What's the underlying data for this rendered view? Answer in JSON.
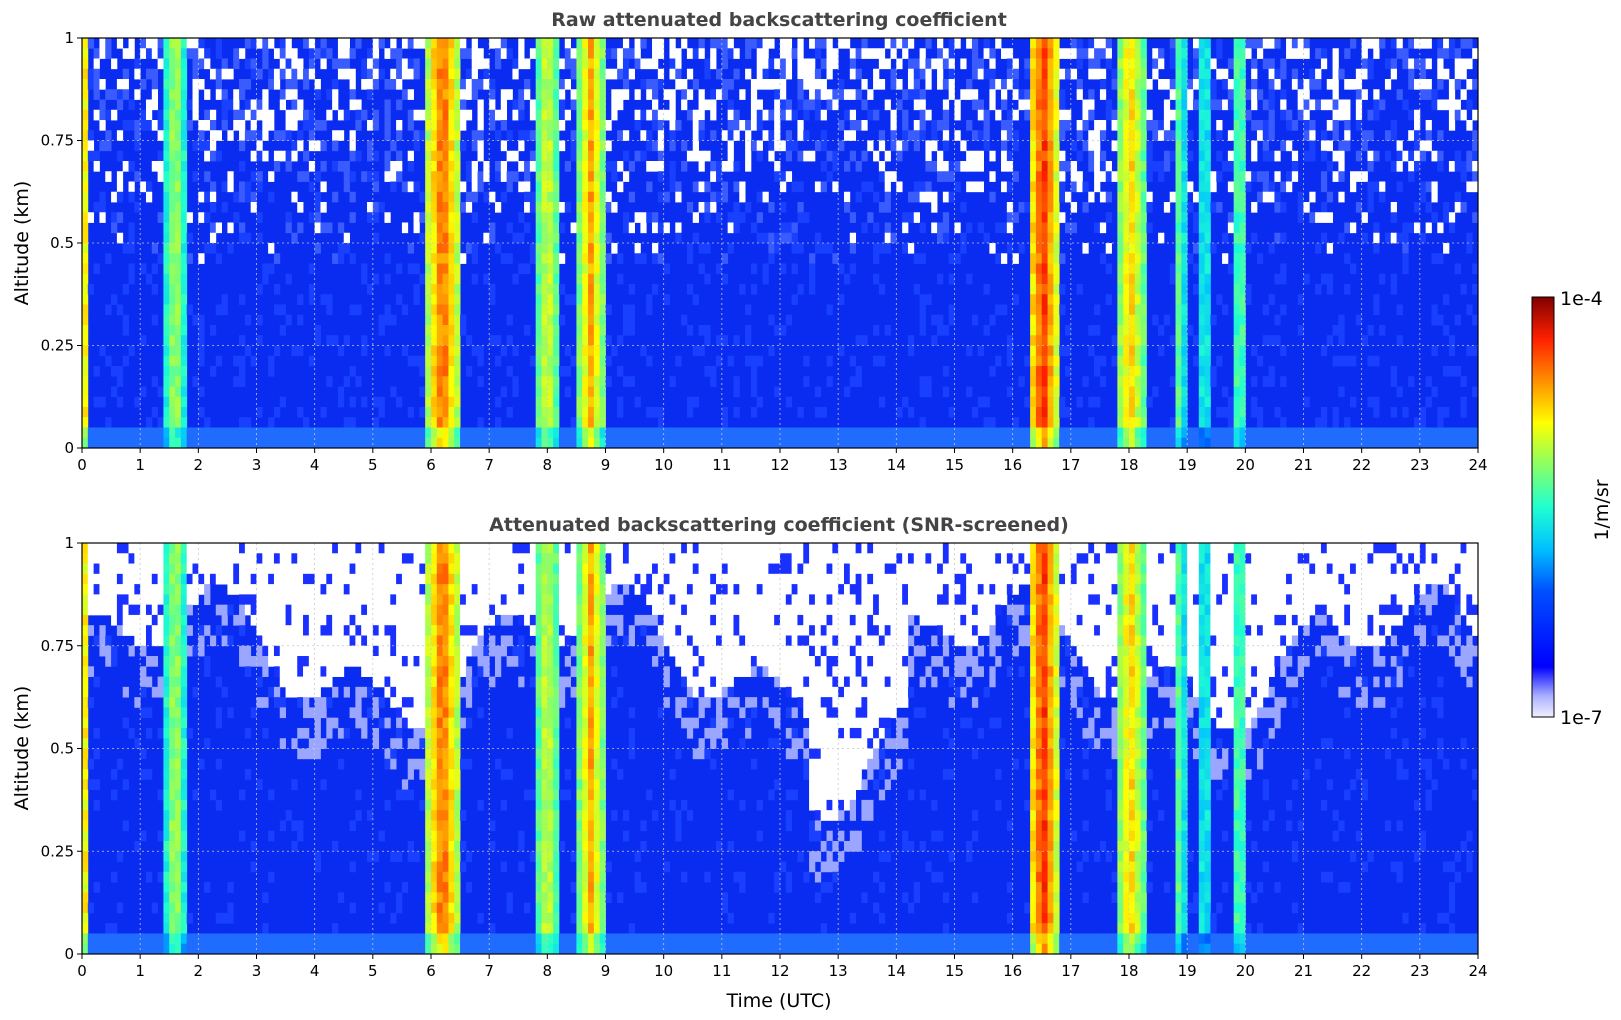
{
  "chart_data": [
    {
      "type": "heatmap",
      "title": "Raw attenuated backscattering coefficient",
      "xlabel": "",
      "ylabel": "Altitude (km)",
      "xlim": [
        0,
        24
      ],
      "ylim": [
        0,
        1
      ],
      "x_ticks": [
        "0",
        "1",
        "2",
        "3",
        "4",
        "5",
        "6",
        "7",
        "8",
        "9",
        "10",
        "11",
        "12",
        "13",
        "14",
        "15",
        "16",
        "17",
        "18",
        "19",
        "20",
        "21",
        "22",
        "23",
        "24"
      ],
      "y_ticks": [
        "0",
        "0.25",
        "0.5",
        "0.75",
        "1"
      ],
      "grid": true,
      "screened": false
    },
    {
      "type": "heatmap",
      "title": "Attenuated backscattering coefficient (SNR-screened)",
      "xlabel": "Time (UTC)",
      "ylabel": "Altitude (km)",
      "xlim": [
        0,
        24
      ],
      "ylim": [
        0,
        1
      ],
      "x_ticks": [
        "0",
        "1",
        "2",
        "3",
        "4",
        "5",
        "6",
        "7",
        "8",
        "9",
        "10",
        "11",
        "12",
        "13",
        "14",
        "15",
        "16",
        "17",
        "18",
        "19",
        "20",
        "21",
        "22",
        "23",
        "24"
      ],
      "y_ticks": [
        "0",
        "0.25",
        "0.5",
        "0.75",
        "1"
      ],
      "grid": true,
      "screened": true
    }
  ],
  "colorbar": {
    "label": "1/m/sr",
    "min_label": "1e-7",
    "max_label": "1e-4",
    "scale": "log",
    "colormap": "jet"
  },
  "features": {
    "cloud_bands_utc": [
      {
        "start": 0.0,
        "end": 0.1,
        "level": 0.7
      },
      {
        "start": 1.45,
        "end": 1.75,
        "level": 0.65
      },
      {
        "start": 5.95,
        "end": 6.45,
        "level": 0.85
      },
      {
        "start": 7.8,
        "end": 8.2,
        "level": 0.68
      },
      {
        "start": 8.55,
        "end": 8.95,
        "level": 0.78
      },
      {
        "start": 16.3,
        "end": 16.75,
        "level": 0.9
      },
      {
        "start": 17.8,
        "end": 18.25,
        "level": 0.75
      },
      {
        "start": 18.8,
        "end": 18.95,
        "level": 0.6
      },
      {
        "start": 19.25,
        "end": 19.35,
        "level": 0.6
      },
      {
        "start": 19.8,
        "end": 20.0,
        "level": 0.6
      }
    ]
  }
}
